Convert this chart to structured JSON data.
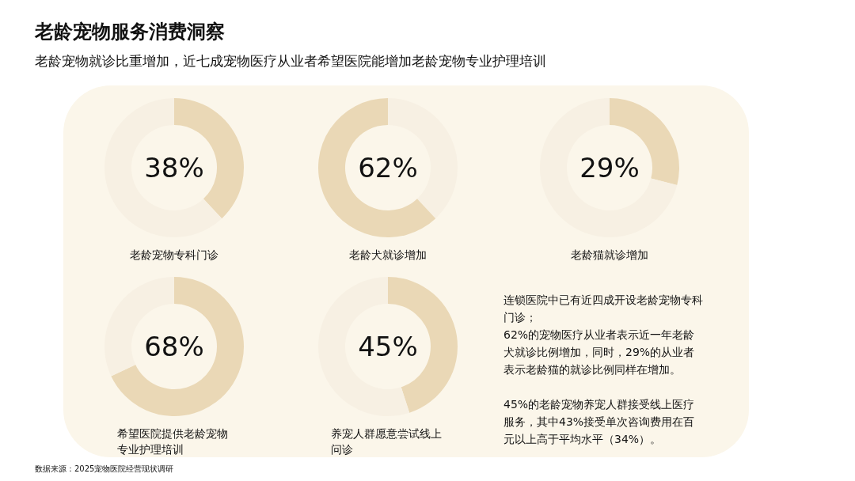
{
  "chart_data": [
    {
      "type": "other",
      "title": "老龄宠物服务消费洞察",
      "subtitle": "老龄宠物就诊比重增加，近七成宠物医疗从业者希望医院能增加老龄宠物专业护理培训",
      "annotations": [
        "数据来源：2025宠物医院经营现状调研"
      ]
    },
    {
      "type": "donut",
      "title": "老龄宠物专科门诊",
      "categories": [
        null,
        null
      ],
      "values": [
        38,
        62
      ],
      "colors": [
        "#ead8b6",
        "#f7f0e3"
      ],
      "annotations": [
        "38%"
      ]
    },
    {
      "type": "donut",
      "title": "老龄犬就诊增加",
      "categories": [
        null,
        null
      ],
      "values": [
        38,
        62
      ],
      "colors": [
        "#f7f0e3",
        "#ead8b6"
      ],
      "annotations": [
        "62%"
      ]
    },
    {
      "type": "donut",
      "title": "老龄猫就诊增加",
      "categories": [
        null,
        null
      ],
      "values": [
        29,
        71
      ],
      "colors": [
        "#ead8b6",
        "#f7f0e3"
      ],
      "annotations": [
        "29%"
      ]
    },
    {
      "type": "donut",
      "title": "希望医院提供老龄宠物专业护理培训",
      "categories": [
        null,
        null
      ],
      "values": [
        68,
        32
      ],
      "colors": [
        "#ead8b6",
        "#f7f0e3"
      ],
      "annotations": [
        "68%"
      ]
    },
    {
      "type": "donut",
      "title": "养宠人群愿意尝试线上问诊",
      "categories": [
        null,
        null
      ],
      "values": [
        45,
        55
      ],
      "colors": [
        "#ead8b6",
        "#f7f0e3"
      ],
      "annotations": [
        "45%"
      ]
    },
    {
      "type": "other",
      "annotations": [
        "连锁医院中已有近四成开设老龄宠物专科门诊；",
        "62%的宠物医疗从业者表示近一年老龄犬就诊比例增加，同时，29%的从业者表示老龄猫的就诊比例同样在增加。",
        "45%的老龄宠物养宠人群接受线上医疗服务，其中43%接受单次咨询费用在百元以上高于平均水平（34%）。"
      ]
    }
  ]
}
